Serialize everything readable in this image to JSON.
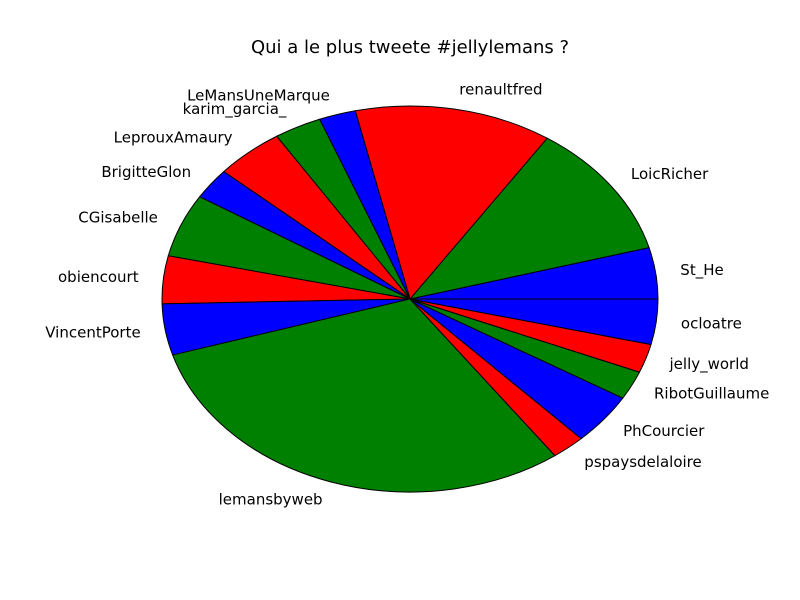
{
  "chart_data": {
    "type": "pie",
    "title": "Qui a le plus tweete #jellylemans ?",
    "start_angle_deg": 0,
    "direction": "counterclockwise",
    "slices": [
      {
        "label": "St_He",
        "value": 4.3,
        "color": "#0000ff"
      },
      {
        "label": "LoicRicher",
        "value": 11.4,
        "color": "#008000"
      },
      {
        "label": "renaultfred",
        "value": 12.9,
        "color": "#ff0000"
      },
      {
        "label": "LeMansUneMarque",
        "value": 2.4,
        "color": "#0000ff"
      },
      {
        "label": "karim_garcia_",
        "value": 3.1,
        "color": "#008000"
      },
      {
        "label": "LeprouxAmaury",
        "value": 4.5,
        "color": "#ff0000"
      },
      {
        "label": "BrigitteGlon",
        "value": 2.6,
        "color": "#0000ff"
      },
      {
        "label": "CGisabelle",
        "value": 5.3,
        "color": "#008000"
      },
      {
        "label": "obiencourt",
        "value": 4.0,
        "color": "#ff0000"
      },
      {
        "label": "VincentPorte",
        "value": 4.3,
        "color": "#0000ff"
      },
      {
        "label": "lemansbyweb",
        "value": 30.3,
        "color": "#008000"
      },
      {
        "label": "pspaysdelaloire",
        "value": 2.2,
        "color": "#ff0000"
      },
      {
        "label": "PhCourcier",
        "value": 4.3,
        "color": "#0000ff"
      },
      {
        "label": "RibotGuillaume",
        "value": 2.4,
        "color": "#008000"
      },
      {
        "label": "jelly_world",
        "value": 2.4,
        "color": "#ff0000"
      },
      {
        "label": "ocloatre",
        "value": 3.8,
        "color": "#0000ff"
      }
    ]
  }
}
